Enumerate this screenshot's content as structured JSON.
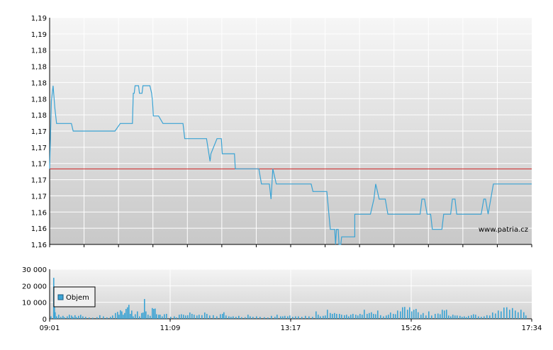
{
  "watermark": "www.patria.cz",
  "chart_data": [
    {
      "type": "line",
      "title": "",
      "ylim": [
        1.16,
        1.19
      ],
      "y_tick_labels": [
        "1,19",
        "1,19",
        "1,18",
        "1,18",
        "1,18",
        "1,18",
        "1,18",
        "1,17",
        "1,17",
        "1,17",
        "1,17",
        "1,17",
        "1,16",
        "1,16",
        "1,16"
      ],
      "reference_line": {
        "value": 1.17,
        "color": "#cc2222"
      },
      "line_color": "#3aa3d4",
      "grid": true,
      "series": [
        {
          "values": [
            [
              0,
              1.17
            ],
            [
              2,
              1.179
            ],
            [
              4,
              1.181
            ],
            [
              6,
              1.178
            ],
            [
              8,
              1.176
            ],
            [
              10,
              1.176
            ],
            [
              25,
              1.176
            ],
            [
              27,
              1.175
            ],
            [
              75,
              1.175
            ],
            [
              81,
              1.176
            ],
            [
              95,
              1.176
            ],
            [
              96,
              1.18
            ],
            [
              97,
              1.18
            ],
            [
              98,
              1.181
            ],
            [
              102,
              1.181
            ],
            [
              103,
              1.18
            ],
            [
              106,
              1.18
            ],
            [
              107,
              1.181
            ],
            [
              115,
              1.181
            ],
            [
              117,
              1.18
            ],
            [
              118,
              1.179
            ],
            [
              119,
              1.177
            ],
            [
              125,
              1.177
            ],
            [
              130,
              1.176
            ],
            [
              148,
              1.176
            ],
            [
              153,
              1.176
            ],
            [
              155,
              1.174
            ],
            [
              175,
              1.174
            ],
            [
              180,
              1.174
            ],
            [
              184,
              1.171
            ],
            [
              185,
              1.172
            ],
            [
              192,
              1.174
            ],
            [
              197,
              1.174
            ],
            [
              198,
              1.172
            ],
            [
              202,
              1.172
            ],
            [
              212,
              1.172
            ],
            [
              213,
              1.17
            ],
            [
              240,
              1.17
            ],
            [
              243,
              1.168
            ],
            [
              252,
              1.168
            ],
            [
              254,
              1.166
            ],
            [
              256,
              1.17
            ],
            [
              260,
              1.168
            ],
            [
              300,
              1.168
            ],
            [
              302,
              1.167
            ],
            [
              318,
              1.167
            ],
            [
              322,
              1.162
            ],
            [
              327,
              1.162
            ],
            [
              328,
              1.16
            ],
            [
              329,
              1.162
            ],
            [
              331,
              1.162
            ],
            [
              332,
              1.16
            ],
            [
              334,
              1.16
            ],
            [
              335,
              1.161
            ],
            [
              339,
              1.161
            ],
            [
              345,
              1.161
            ],
            [
              347,
              1.161
            ],
            [
              350,
              1.161
            ],
            [
              350,
              1.164
            ],
            [
              368,
              1.164
            ],
            [
              372,
              1.166
            ],
            [
              374,
              1.168
            ],
            [
              376,
              1.167
            ],
            [
              378,
              1.166
            ],
            [
              385,
              1.166
            ],
            [
              388,
              1.164
            ],
            [
              420,
              1.164
            ],
            [
              425,
              1.164
            ],
            [
              427,
              1.166
            ],
            [
              430,
              1.166
            ],
            [
              433,
              1.164
            ],
            [
              437,
              1.164
            ],
            [
              439,
              1.162
            ],
            [
              450,
              1.162
            ],
            [
              452,
              1.164
            ],
            [
              460,
              1.164
            ],
            [
              462,
              1.166
            ],
            [
              465,
              1.166
            ],
            [
              467,
              1.164
            ],
            [
              482,
              1.164
            ],
            [
              495,
              1.164
            ],
            [
              498,
              1.166
            ],
            [
              500,
              1.166
            ],
            [
              503,
              1.164
            ],
            [
              509,
              1.168
            ],
            [
              513,
              1.168
            ],
            [
              546,
              1.168
            ],
            [
              548,
              1.168
            ],
            [
              553,
              1.168
            ]
          ]
        }
      ],
      "x_axis_ticks": [],
      "volume": {
        "ylim": [
          0,
          30000
        ],
        "y_tick_labels": [
          "30 000",
          "20 000",
          "10 000",
          "0"
        ],
        "x_tick_labels": [
          "09:01",
          "11:09",
          "13:17",
          "15:26",
          "17:34"
        ],
        "legend": "Objem",
        "bar_color": "#3aa3d4",
        "bars": [
          [
            1,
            1500
          ],
          [
            5,
            24800
          ],
          [
            6,
            17000
          ],
          [
            7,
            4000
          ],
          [
            9,
            1500
          ],
          [
            12,
            2500
          ],
          [
            15,
            1200
          ],
          [
            18,
            1800
          ],
          [
            20,
            900
          ],
          [
            24,
            1500
          ],
          [
            27,
            2500
          ],
          [
            30,
            2000
          ],
          [
            32,
            1200
          ],
          [
            35,
            2200
          ],
          [
            37,
            1000
          ],
          [
            40,
            1800
          ],
          [
            43,
            2400
          ],
          [
            46,
            1500
          ],
          [
            50,
            1200
          ],
          [
            55,
            800
          ],
          [
            60,
            700
          ],
          [
            66,
            1000
          ],
          [
            70,
            2200
          ],
          [
            75,
            1500
          ],
          [
            80,
            900
          ],
          [
            85,
            1200
          ],
          [
            88,
            2000
          ],
          [
            92,
            3500
          ],
          [
            95,
            4200
          ],
          [
            97,
            2500
          ],
          [
            99,
            5200
          ],
          [
            101,
            4500
          ],
          [
            103,
            2500
          ],
          [
            105,
            3500
          ],
          [
            107,
            6000
          ],
          [
            109,
            7000
          ],
          [
            111,
            8500
          ],
          [
            113,
            3000
          ],
          [
            115,
            5000
          ],
          [
            117,
            1500
          ],
          [
            120,
            2800
          ],
          [
            123,
            4500
          ],
          [
            126,
            1500
          ],
          [
            129,
            3500
          ],
          [
            131,
            3800
          ],
          [
            133,
            12000
          ],
          [
            135,
            4500
          ],
          [
            138,
            2500
          ],
          [
            141,
            1800
          ],
          [
            144,
            6500
          ],
          [
            146,
            6000
          ],
          [
            148,
            6200
          ],
          [
            150,
            2800
          ],
          [
            153,
            2500
          ],
          [
            155,
            2500
          ],
          [
            158,
            1500
          ],
          [
            161,
            2800
          ],
          [
            164,
            3000
          ],
          [
            170,
            1200
          ],
          [
            175,
            1500
          ],
          [
            178,
            800
          ],
          [
            182,
            2500
          ],
          [
            185,
            2800
          ],
          [
            188,
            2500
          ],
          [
            191,
            2000
          ],
          [
            194,
            2200
          ],
          [
            197,
            3800
          ],
          [
            200,
            3000
          ],
          [
            203,
            2500
          ],
          [
            207,
            2000
          ],
          [
            210,
            2500
          ],
          [
            214,
            2200
          ],
          [
            218,
            3800
          ],
          [
            221,
            3000
          ],
          [
            225,
            2000
          ],
          [
            230,
            2200
          ],
          [
            235,
            1500
          ],
          [
            240,
            2800
          ],
          [
            243,
            3000
          ],
          [
            245,
            4000
          ],
          [
            248,
            2000
          ],
          [
            252,
            1500
          ],
          [
            255,
            1200
          ],
          [
            258,
            1500
          ],
          [
            262,
            1200
          ],
          [
            266,
            1800
          ],
          [
            270,
            1000
          ],
          [
            275,
            1000
          ],
          [
            279,
            2500
          ],
          [
            282,
            1500
          ],
          [
            286,
            1200
          ],
          [
            291,
            1500
          ],
          [
            296,
            1200
          ],
          [
            302,
            1000
          ],
          [
            307,
            800
          ],
          [
            312,
            1800
          ],
          [
            317,
            1200
          ],
          [
            320,
            2500
          ],
          [
            325,
            1500
          ],
          [
            328,
            1500
          ],
          [
            331,
            1800
          ],
          [
            335,
            1500
          ],
          [
            338,
            2000
          ],
          [
            342,
            1200
          ],
          [
            346,
            1500
          ],
          [
            350,
            1500
          ],
          [
            355,
            1200
          ],
          [
            360,
            1800
          ],
          [
            365,
            1500
          ],
          [
            370,
            1200
          ],
          [
            375,
            4500
          ],
          [
            378,
            2500
          ],
          [
            381,
            1500
          ],
          [
            385,
            1800
          ],
          [
            388,
            2000
          ],
          [
            391,
            5500
          ],
          [
            395,
            3500
          ],
          [
            398,
            3000
          ],
          [
            401,
            3500
          ],
          [
            404,
            3000
          ],
          [
            408,
            3000
          ],
          [
            411,
            2500
          ],
          [
            415,
            2200
          ],
          [
            418,
            2500
          ],
          [
            421,
            1500
          ],
          [
            424,
            2500
          ],
          [
            427,
            3000
          ],
          [
            431,
            2500
          ],
          [
            434,
            2000
          ],
          [
            437,
            3000
          ],
          [
            440,
            2500
          ],
          [
            443,
            5500
          ],
          [
            447,
            3000
          ],
          [
            450,
            3500
          ],
          [
            453,
            4000
          ],
          [
            456,
            3000
          ],
          [
            459,
            2800
          ],
          [
            462,
            5000
          ],
          [
            466,
            2200
          ],
          [
            470,
            1500
          ],
          [
            474,
            2000
          ],
          [
            477,
            2500
          ],
          [
            480,
            3800
          ],
          [
            484,
            3000
          ],
          [
            487,
            2800
          ],
          [
            490,
            5000
          ],
          [
            494,
            4500
          ],
          [
            497,
            7000
          ],
          [
            500,
            7200
          ],
          [
            504,
            5500
          ],
          [
            507,
            7000
          ],
          [
            510,
            4500
          ],
          [
            513,
            5500
          ],
          [
            516,
            6000
          ],
          [
            519,
            4000
          ],
          [
            523,
            2500
          ],
          [
            526,
            3500
          ],
          [
            530,
            2000
          ],
          [
            534,
            4500
          ],
          [
            538,
            2000
          ],
          [
            543,
            3000
          ],
          [
            547,
            3200
          ],
          [
            550,
            2800
          ],
          [
            553,
            5500
          ],
          [
            556,
            5000
          ],
          [
            559,
            5500
          ],
          [
            562,
            2000
          ],
          [
            565,
            1500
          ],
          [
            568,
            2500
          ],
          [
            571,
            2000
          ],
          [
            574,
            2000
          ],
          [
            578,
            1800
          ],
          [
            581,
            1200
          ],
          [
            584,
            1500
          ],
          [
            587,
            1000
          ],
          [
            590,
            1800
          ],
          [
            594,
            2200
          ],
          [
            597,
            2800
          ],
          [
            600,
            2500
          ],
          [
            604,
            1500
          ],
          [
            608,
            1200
          ],
          [
            612,
            1500
          ],
          [
            616,
            2200
          ],
          [
            620,
            2000
          ],
          [
            624,
            3800
          ],
          [
            628,
            3200
          ],
          [
            632,
            5000
          ],
          [
            636,
            4500
          ],
          [
            640,
            6800
          ],
          [
            644,
            7000
          ],
          [
            648,
            5500
          ],
          [
            652,
            6500
          ],
          [
            656,
            5000
          ],
          [
            660,
            4000
          ],
          [
            664,
            5500
          ],
          [
            668,
            4000
          ],
          [
            671,
            2000
          ]
        ]
      }
    }
  ]
}
